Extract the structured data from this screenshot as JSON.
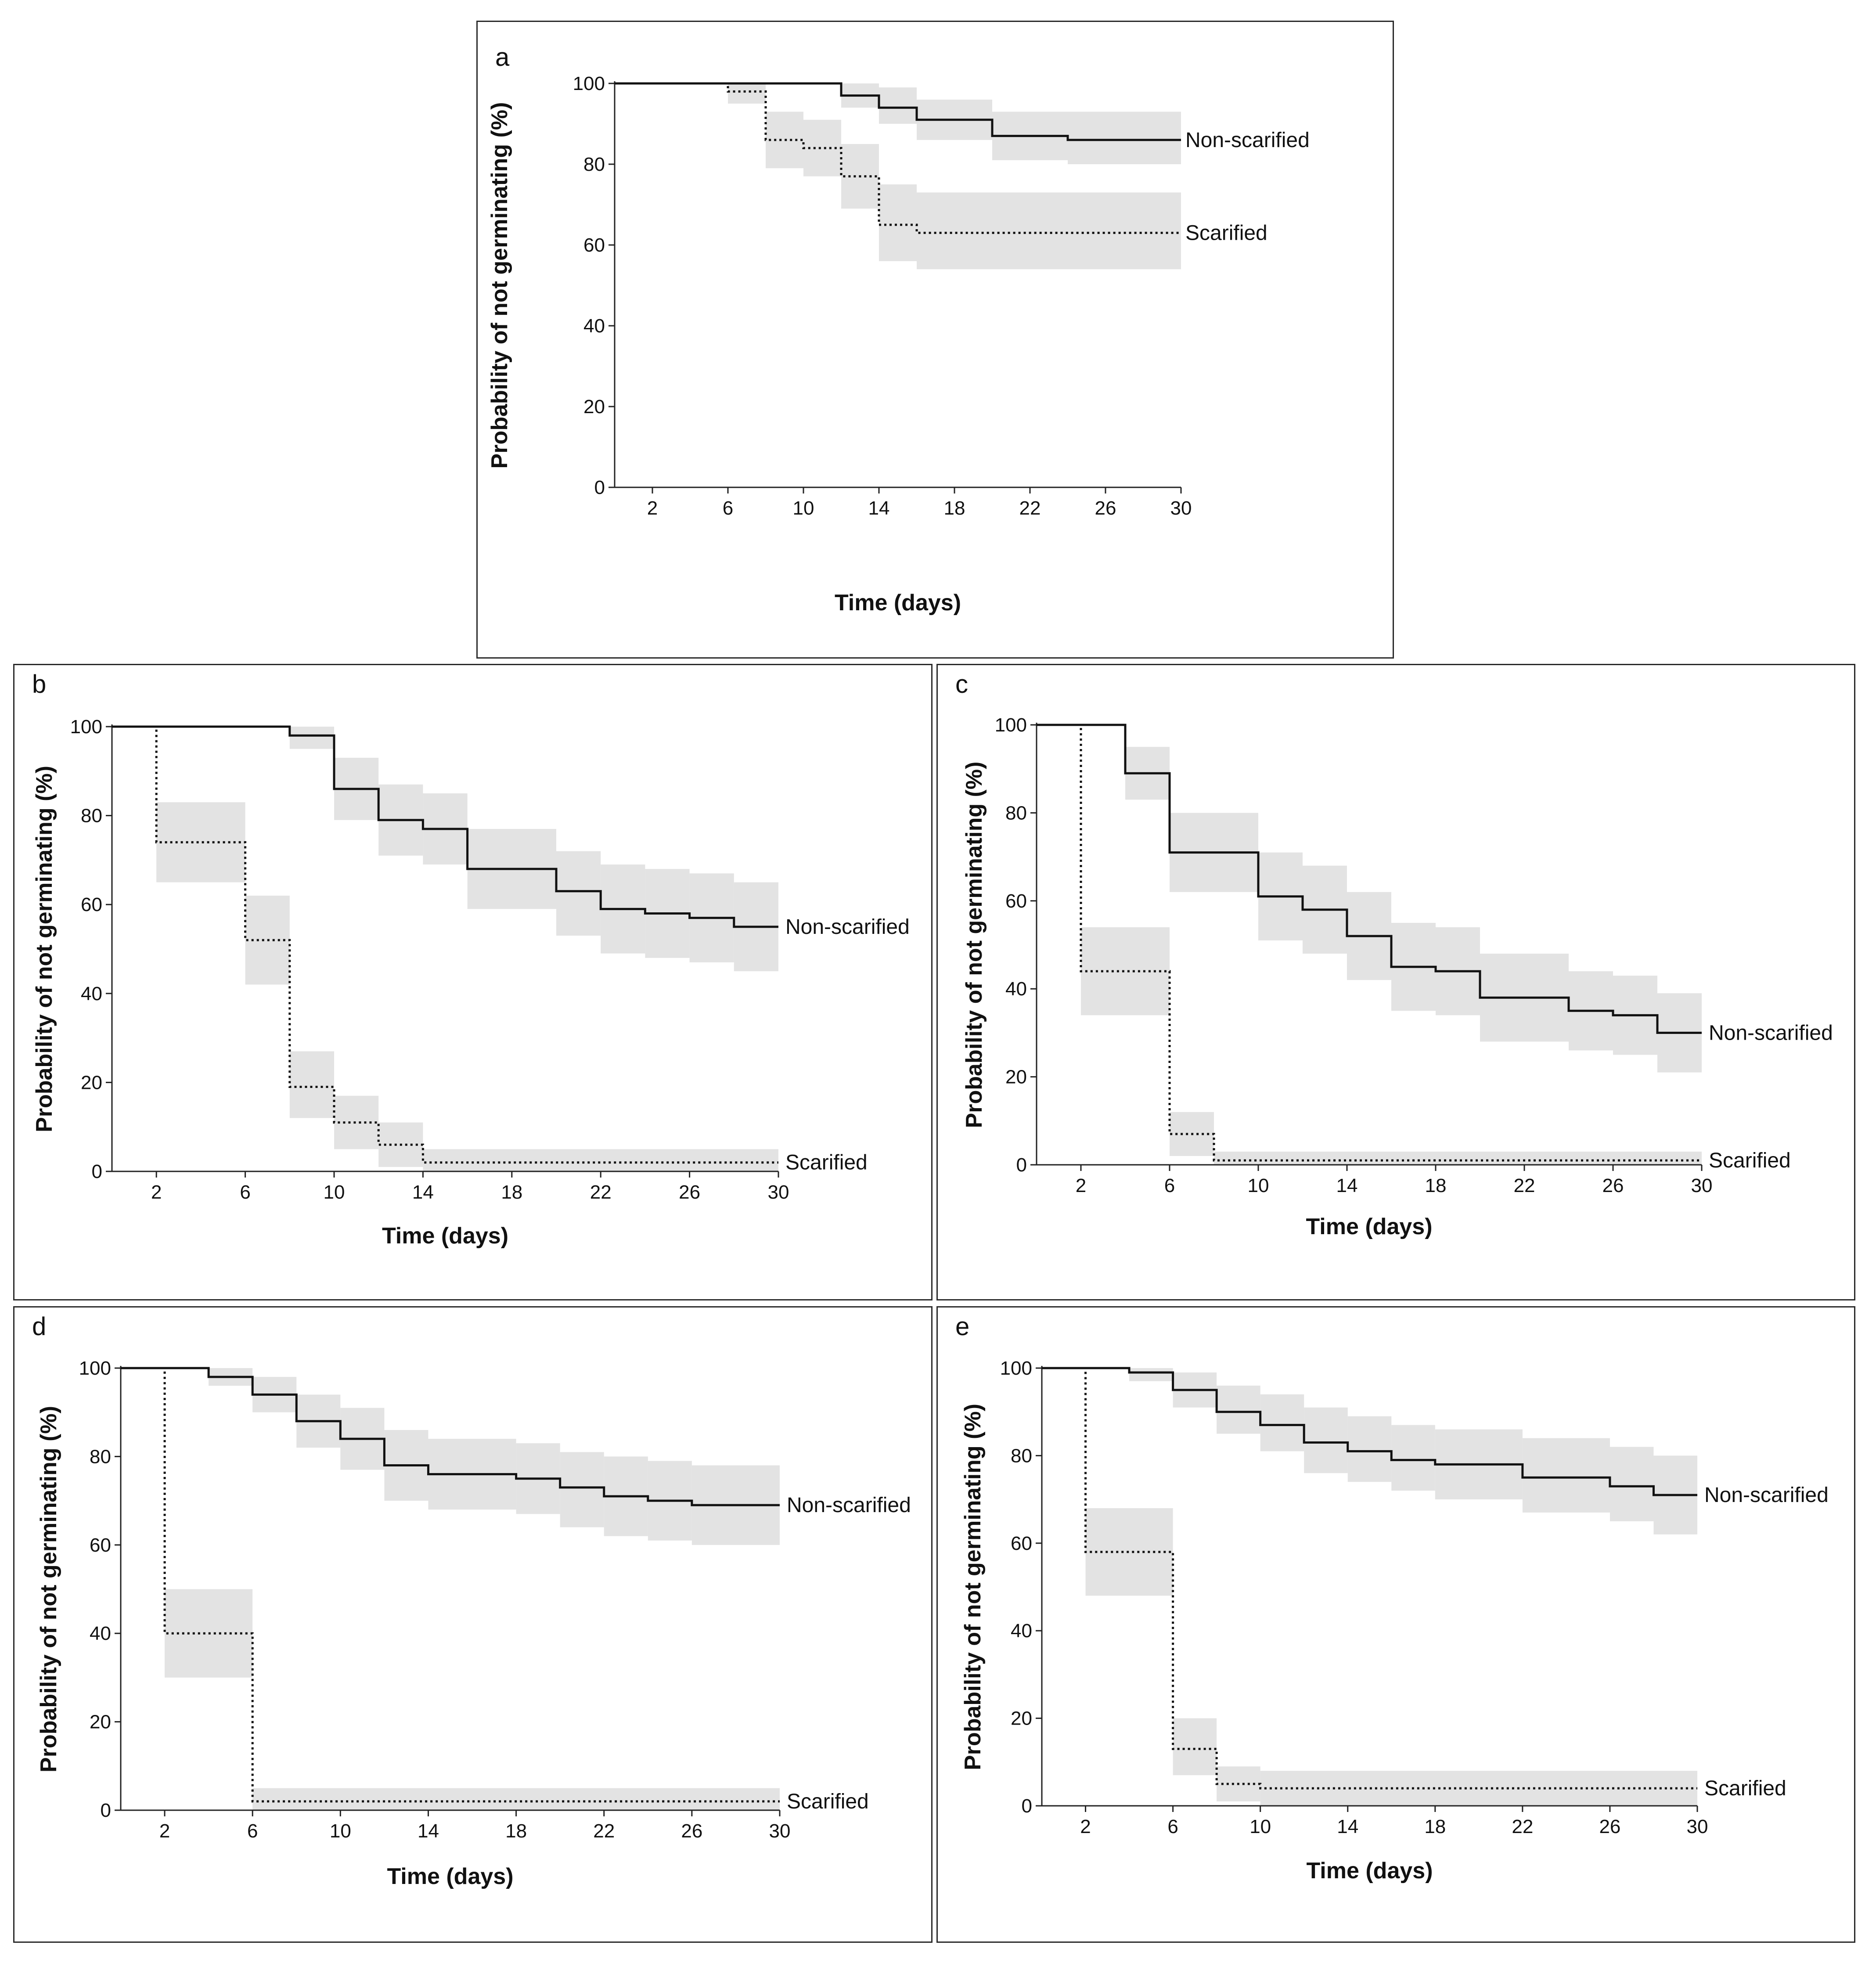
{
  "figure": {
    "panels": [
      "a",
      "b",
      "c",
      "d",
      "e"
    ]
  },
  "chart_data": [
    {
      "panel": "a",
      "type": "line",
      "step": true,
      "title": "",
      "xlabel": "Time (days)",
      "ylabel": "Probability of not germinating (%)",
      "xlim": [
        0,
        30
      ],
      "ylim": [
        0,
        100
      ],
      "xticks": [
        2,
        6,
        10,
        14,
        18,
        22,
        26,
        30
      ],
      "yticks": [
        0,
        20,
        40,
        60,
        80,
        100
      ],
      "series": [
        {
          "name": "Non-scarified",
          "style": "solid",
          "x": [
            0,
            12,
            14,
            16,
            20,
            24,
            30
          ],
          "values": [
            100,
            97,
            94,
            91,
            87,
            86,
            86
          ],
          "ci_lower": [
            100,
            94,
            90,
            86,
            81,
            80,
            80
          ],
          "ci_upper": [
            100,
            100,
            99,
            96,
            93,
            93,
            93
          ]
        },
        {
          "name": "Scarified",
          "style": "dotted",
          "x": [
            0,
            6,
            8,
            10,
            12,
            14,
            16,
            30
          ],
          "values": [
            100,
            98,
            86,
            84,
            77,
            65,
            63,
            63
          ],
          "ci_lower": [
            100,
            95,
            79,
            77,
            69,
            56,
            54,
            54
          ],
          "ci_upper": [
            100,
            100,
            93,
            91,
            85,
            75,
            73,
            73
          ]
        }
      ]
    },
    {
      "panel": "b",
      "type": "line",
      "step": true,
      "title": "",
      "xlabel": "Time (days)",
      "ylabel": "Probability of not germinating (%)",
      "xlim": [
        0,
        30
      ],
      "ylim": [
        0,
        100
      ],
      "xticks": [
        2,
        6,
        10,
        14,
        18,
        22,
        26,
        30
      ],
      "yticks": [
        0,
        20,
        40,
        60,
        80,
        100
      ],
      "series": [
        {
          "name": "Non-scarified",
          "style": "solid",
          "x": [
            0,
            8,
            10,
            12,
            14,
            16,
            20,
            22,
            24,
            26,
            28,
            30
          ],
          "values": [
            100,
            98,
            86,
            79,
            77,
            68,
            63,
            59,
            58,
            57,
            55,
            55
          ],
          "ci_lower": [
            100,
            95,
            79,
            71,
            69,
            59,
            53,
            49,
            48,
            47,
            45,
            45
          ],
          "ci_upper": [
            100,
            100,
            93,
            87,
            85,
            77,
            72,
            69,
            68,
            67,
            65,
            65
          ]
        },
        {
          "name": "Scarified",
          "style": "dotted",
          "x": [
            0,
            2,
            6,
            8,
            10,
            12,
            14,
            30
          ],
          "values": [
            100,
            74,
            52,
            19,
            11,
            6,
            2,
            2
          ],
          "ci_lower": [
            100,
            65,
            42,
            12,
            5,
            1,
            0,
            0
          ],
          "ci_upper": [
            100,
            83,
            62,
            27,
            17,
            11,
            5,
            5
          ]
        }
      ]
    },
    {
      "panel": "c",
      "type": "line",
      "step": true,
      "title": "",
      "xlabel": "Time (days)",
      "ylabel": "Probability of not germinating (%)",
      "xlim": [
        0,
        30
      ],
      "ylim": [
        0,
        100
      ],
      "xticks": [
        2,
        6,
        10,
        14,
        18,
        22,
        26,
        30
      ],
      "yticks": [
        0,
        20,
        40,
        60,
        80,
        100
      ],
      "series": [
        {
          "name": "Non-scarified",
          "style": "solid",
          "x": [
            0,
            4,
            6,
            10,
            12,
            14,
            16,
            18,
            20,
            24,
            26,
            28,
            30
          ],
          "values": [
            100,
            89,
            71,
            61,
            58,
            52,
            45,
            44,
            38,
            35,
            34,
            30,
            30
          ],
          "ci_lower": [
            100,
            83,
            62,
            51,
            48,
            42,
            35,
            34,
            28,
            26,
            25,
            21,
            21
          ],
          "ci_upper": [
            100,
            95,
            80,
            71,
            68,
            62,
            55,
            54,
            48,
            44,
            43,
            39,
            39
          ]
        },
        {
          "name": "Scarified",
          "style": "dotted",
          "x": [
            0,
            2,
            6,
            8,
            30
          ],
          "values": [
            100,
            44,
            7,
            1,
            1
          ],
          "ci_lower": [
            100,
            34,
            2,
            0,
            0
          ],
          "ci_upper": [
            100,
            54,
            12,
            3,
            3
          ]
        }
      ]
    },
    {
      "panel": "d",
      "type": "line",
      "step": true,
      "title": "",
      "xlabel": "Time (days)",
      "ylabel": "Probability of not germinating (%)",
      "xlim": [
        0,
        30
      ],
      "ylim": [
        0,
        100
      ],
      "xticks": [
        2,
        6,
        10,
        14,
        18,
        22,
        26,
        30
      ],
      "yticks": [
        0,
        20,
        40,
        60,
        80,
        100
      ],
      "series": [
        {
          "name": "Non-scarified",
          "style": "solid",
          "x": [
            0,
            4,
            6,
            8,
            10,
            12,
            14,
            18,
            20,
            22,
            24,
            26,
            30
          ],
          "values": [
            100,
            98,
            94,
            88,
            84,
            78,
            76,
            75,
            73,
            71,
            70,
            69,
            69
          ],
          "ci_lower": [
            100,
            96,
            90,
            82,
            77,
            70,
            68,
            67,
            64,
            62,
            61,
            60,
            60
          ],
          "ci_upper": [
            100,
            100,
            98,
            94,
            91,
            86,
            84,
            83,
            81,
            80,
            79,
            78,
            78
          ]
        },
        {
          "name": "Scarified",
          "style": "dotted",
          "x": [
            0,
            2,
            6,
            30
          ],
          "values": [
            100,
            40,
            2,
            2
          ],
          "ci_lower": [
            100,
            30,
            0,
            0
          ],
          "ci_upper": [
            100,
            50,
            5,
            5
          ]
        }
      ]
    },
    {
      "panel": "e",
      "type": "line",
      "step": true,
      "title": "",
      "xlabel": "Time (days)",
      "ylabel": "Probability of not germinating (%)",
      "xlim": [
        0,
        30
      ],
      "ylim": [
        0,
        100
      ],
      "xticks": [
        2,
        6,
        10,
        14,
        18,
        22,
        26,
        30
      ],
      "yticks": [
        0,
        20,
        40,
        60,
        80,
        100
      ],
      "series": [
        {
          "name": "Non-scarified",
          "style": "solid",
          "x": [
            0,
            4,
            6,
            8,
            10,
            12,
            14,
            16,
            18,
            22,
            26,
            28,
            30
          ],
          "values": [
            100,
            99,
            95,
            90,
            87,
            83,
            81,
            79,
            78,
            75,
            73,
            71,
            71
          ],
          "ci_lower": [
            100,
            97,
            91,
            85,
            81,
            76,
            74,
            72,
            70,
            67,
            65,
            62,
            62
          ],
          "ci_upper": [
            100,
            100,
            99,
            96,
            94,
            91,
            89,
            87,
            86,
            84,
            82,
            80,
            80
          ]
        },
        {
          "name": "Scarified",
          "style": "dotted",
          "x": [
            0,
            2,
            6,
            8,
            10,
            30
          ],
          "values": [
            100,
            58,
            13,
            5,
            4,
            4
          ],
          "ci_lower": [
            100,
            48,
            7,
            1,
            0,
            0
          ],
          "ci_upper": [
            100,
            68,
            20,
            9,
            8,
            8
          ]
        }
      ]
    }
  ]
}
